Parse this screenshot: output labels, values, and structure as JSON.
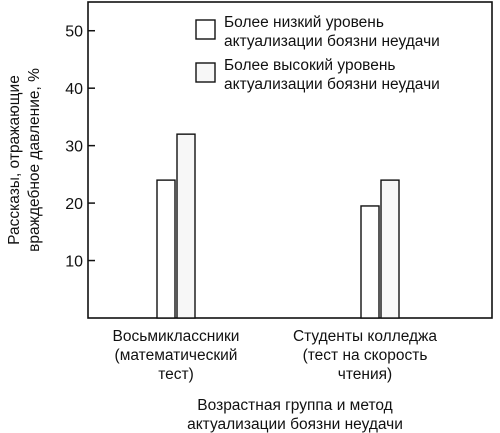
{
  "chart_data": {
    "type": "bar",
    "title": "",
    "ylabel": [
      "Рассказы, отражающие",
      "враждебное давление, %"
    ],
    "xlabel": [
      "Возрастная группа и метод",
      "актуализации боязни неудачи"
    ],
    "ylim": [
      0,
      55
    ],
    "yticks": [
      10,
      20,
      30,
      40,
      50
    ],
    "grid": false,
    "legend_position": "top-right",
    "categories": [
      [
        "Восьмиклассники",
        "(математический",
        "тест)"
      ],
      [
        "Студенты колледжа",
        "(тест на скорость",
        "чтения)"
      ]
    ],
    "series": [
      {
        "name": [
          "Более низкий уровень",
          "актуализации боязни неудачи"
        ],
        "values": [
          24,
          19.5
        ],
        "fill": "#ffffff"
      },
      {
        "name": [
          "Более высокий уровень",
          "актуализации боязни неудачи"
        ],
        "values": [
          32,
          24
        ],
        "fill": "#f7f7f7"
      }
    ],
    "colors": {
      "stroke": "#111111"
    }
  }
}
